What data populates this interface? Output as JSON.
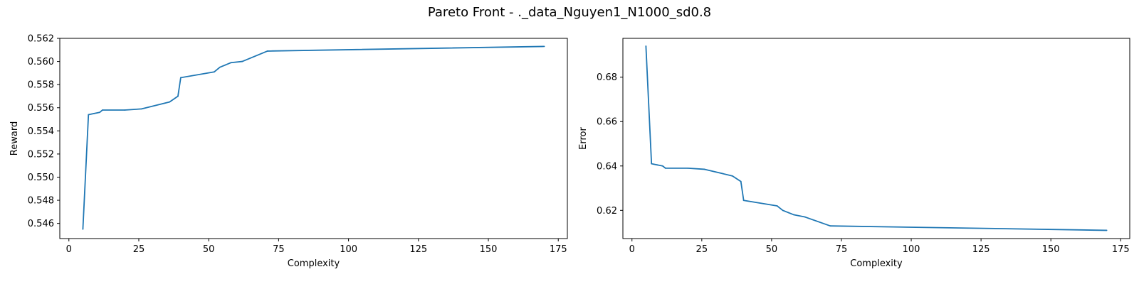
{
  "figure": {
    "title": "Pareto Front - ._data_Nguyen1_N1000_sd0.8"
  },
  "chart_data": [
    {
      "type": "line",
      "title": "",
      "xlabel": "Complexity",
      "ylabel": "Reward",
      "xlim": [
        -3.25,
        178.25
      ],
      "ylim": [
        0.54469,
        0.562
      ],
      "xticks": [
        0,
        25,
        50,
        75,
        100,
        125,
        150,
        175
      ],
      "yticks": [
        0.546,
        0.548,
        0.55,
        0.552,
        0.554,
        0.556,
        0.558,
        0.56,
        0.562
      ],
      "ytick_decimals": 3,
      "grid": false,
      "color": "#1f77b4",
      "series": [
        {
          "x": [
            5,
            7,
            9,
            11,
            12,
            20,
            26,
            36,
            39,
            40,
            52,
            54,
            56,
            58,
            62,
            71,
            170
          ],
          "y": [
            0.5455,
            0.5554,
            0.5555,
            0.5556,
            0.5558,
            0.5558,
            0.5559,
            0.5565,
            0.557,
            0.5586,
            0.5591,
            0.5595,
            0.5597,
            0.5599,
            0.56,
            0.5609,
            0.5613
          ]
        }
      ]
    },
    {
      "type": "line",
      "title": "",
      "xlabel": "Complexity",
      "ylabel": "Error",
      "xlim": [
        -3.25,
        178.25
      ],
      "ylim": [
        0.6073,
        0.6975
      ],
      "xticks": [
        0,
        25,
        50,
        75,
        100,
        125,
        150,
        175
      ],
      "yticks": [
        0.62,
        0.64,
        0.66,
        0.68
      ],
      "ytick_decimals": 2,
      "grid": false,
      "color": "#1f77b4",
      "series": [
        {
          "x": [
            5,
            7,
            9,
            11,
            12,
            20,
            26,
            36,
            39,
            40,
            52,
            54,
            56,
            58,
            62,
            71,
            170
          ],
          "y": [
            0.694,
            0.641,
            0.6405,
            0.64,
            0.639,
            0.639,
            0.6385,
            0.6355,
            0.633,
            0.6245,
            0.622,
            0.62,
            0.619,
            0.618,
            0.617,
            0.613,
            0.611
          ]
        }
      ]
    }
  ]
}
